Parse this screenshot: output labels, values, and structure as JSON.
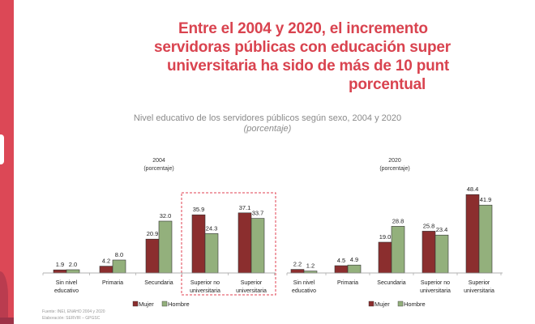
{
  "headline": {
    "lines": [
      "Entre el 2004 y 2020, el incremento",
      "servidoras públicas con educación super",
      "universitaria ha sido de más de 10 punt",
      "porcentual"
    ],
    "color": "#d9434f"
  },
  "subtitle": "Nivel educativo de los servidores públicos según sexo, 2004 y 2020",
  "subtitle_unit": "(porcentaje)",
  "source": "Fuente: INEI, ENAHO 2004 y 2020",
  "elaboration": "Elaboración: SERVIR – GPGSC",
  "chart_data": [
    {
      "type": "bar",
      "title": "2004",
      "subtitle": "(porcentaje)",
      "categories": [
        "Sin nivel educativo",
        "Primaria",
        "Secundaria",
        "Superior no universitaria",
        "Superior universitaria"
      ],
      "category_lines": [
        [
          "Sin nivel",
          "educativo"
        ],
        [
          "Primaria"
        ],
        [
          "Secundaria"
        ],
        [
          "Superior no",
          "universitaria"
        ],
        [
          "Superior",
          "universitaria"
        ]
      ],
      "series": [
        {
          "name": "Mujer",
          "color": "#8b2e2e",
          "values": [
            1.9,
            4.2,
            20.9,
            35.9,
            37.1
          ]
        },
        {
          "name": "Hombre",
          "color": "#93b07c",
          "values": [
            2.0,
            8.0,
            32.0,
            24.3,
            33.7
          ]
        }
      ],
      "labels": [
        [
          "1.9",
          "4.2",
          "20.9",
          "35.9",
          "37.1"
        ],
        [
          "2.0",
          "8.0",
          "32.0",
          "24.3",
          "33.7"
        ]
      ],
      "highlight": "dashed red box around Superior no universitaria and Superior universitaria",
      "legend": "bottom",
      "grid": false
    },
    {
      "type": "bar",
      "title": "2020",
      "subtitle": "(porcentaje)",
      "categories": [
        "Sin nivel educativo",
        "Primaria",
        "Secundaria",
        "Superior no universitaria",
        "Superior universitaria"
      ],
      "category_lines": [
        [
          "Sin nivel",
          "educativo"
        ],
        [
          "Primaria"
        ],
        [
          "Secundaria"
        ],
        [
          "Superior no",
          "universitaria"
        ],
        [
          "Superior",
          "universitaria"
        ]
      ],
      "series": [
        {
          "name": "Mujer",
          "color": "#8b2e2e",
          "values": [
            2.2,
            4.5,
            19.0,
            25.8,
            48.4
          ]
        },
        {
          "name": "Hombre",
          "color": "#93b07c",
          "values": [
            1.2,
            4.9,
            28.8,
            23.4,
            41.9
          ]
        }
      ],
      "labels": [
        [
          "2.2",
          "4.5",
          "19.0",
          "25.8",
          "48.4"
        ],
        [
          "1.2",
          "4.9",
          "28.8",
          "23.4",
          "41.9"
        ]
      ],
      "legend": "bottom",
      "grid": false
    }
  ]
}
